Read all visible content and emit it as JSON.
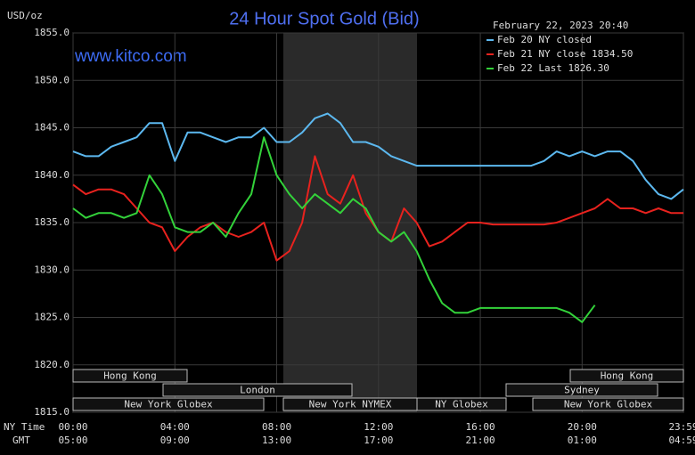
{
  "chart_data": {
    "type": "line",
    "title": "24 Hour Spot Gold (Bid)",
    "y_unit": "USD/oz",
    "website": "www.kitco.com",
    "timestamp": "February 22, 2023 20:40",
    "x_row_label": "NY Time",
    "x2_row_label": "GMT",
    "x": [
      0,
      0.5,
      1,
      1.5,
      2,
      2.5,
      3,
      3.5,
      4,
      4.5,
      5,
      5.5,
      6,
      6.5,
      7,
      7.5,
      8,
      8.5,
      9,
      9.5,
      10,
      10.5,
      11,
      11.5,
      12,
      12.5,
      13,
      13.5,
      14,
      14.5,
      15,
      15.5,
      16,
      16.5,
      17,
      17.5,
      18,
      18.5,
      19,
      19.5,
      20,
      20.5,
      21,
      21.5,
      22,
      22.5,
      23,
      23.5,
      23.98
    ],
    "xlim": [
      0,
      23.98
    ],
    "xticks": [
      {
        "value": 0,
        "label": "00:00"
      },
      {
        "value": 4,
        "label": "04:00"
      },
      {
        "value": 8,
        "label": "08:00"
      },
      {
        "value": 12,
        "label": "12:00"
      },
      {
        "value": 16,
        "label": "16:00"
      },
      {
        "value": 20,
        "label": "20:00"
      },
      {
        "value": 23.98,
        "label": "23:59"
      }
    ],
    "x2ticks": [
      {
        "value": 0,
        "label": "05:00"
      },
      {
        "value": 4,
        "label": "09:00"
      },
      {
        "value": 8,
        "label": "13:00"
      },
      {
        "value": 12,
        "label": "17:00"
      },
      {
        "value": 16,
        "label": "21:00"
      },
      {
        "value": 20,
        "label": "01:00"
      },
      {
        "value": 23.98,
        "label": "04:59"
      }
    ],
    "ylim": [
      1815,
      1855
    ],
    "yticks": [
      {
        "value": 1815,
        "label": "1815.0"
      },
      {
        "value": 1820,
        "label": "1820.0"
      },
      {
        "value": 1825,
        "label": "1825.0"
      },
      {
        "value": 1830,
        "label": "1830.0"
      },
      {
        "value": 1835,
        "label": "1835.0"
      },
      {
        "value": 1840,
        "label": "1840.0"
      },
      {
        "value": 1845,
        "label": "1845.0"
      },
      {
        "value": 1850,
        "label": "1850.0"
      },
      {
        "value": 1855,
        "label": "1855.0"
      }
    ],
    "grid": true,
    "legend": "top-right",
    "series": [
      {
        "name": "Feb 20 NY closed",
        "color": "#5cb8ef",
        "values": [
          1842.5,
          1842,
          1842,
          1843,
          1843.5,
          1844,
          1845.5,
          1845.5,
          1841.5,
          1844.5,
          1844.5,
          1844,
          1843.5,
          1844,
          1844,
          1845,
          1843.5,
          1843.5,
          1844.5,
          1846,
          1846.5,
          1845.5,
          1843.5,
          1843.5,
          1843,
          1842,
          1841.5,
          1841,
          1841,
          1841,
          1841,
          1841,
          1841,
          1841,
          1841,
          1841,
          1841,
          1841.5,
          1842.5,
          1842,
          1842.5,
          1842,
          1842.5,
          1842.5,
          1841.5,
          1839.5,
          1838,
          1837.5,
          1838.5
        ]
      },
      {
        "name": "Feb 21 NY close 1834.50",
        "color": "#e8221e",
        "values": [
          1839,
          1838,
          1838.5,
          1838.5,
          1838,
          1836.5,
          1835,
          1834.5,
          1832,
          1833.5,
          1834.5,
          1835,
          1834,
          1833.5,
          1834,
          1835,
          1831,
          1832,
          1835,
          1842,
          1838,
          1837,
          1840,
          1836,
          1834,
          1833,
          1836.5,
          1835,
          1832.5,
          1833,
          1834,
          1835,
          1835,
          1834.8,
          1834.8,
          1834.8,
          1834.8,
          1834.8,
          1835,
          1835.5,
          1836,
          1836.5,
          1837.5,
          1836.5,
          1836.5,
          1836,
          1836.5,
          1836,
          1836
        ]
      },
      {
        "name": "Feb 22 Last 1826.30",
        "color": "#33d23a",
        "values": [
          1836.5,
          1835.5,
          1836,
          1836,
          1835.5,
          1836,
          1840,
          1838,
          1834.5,
          1834,
          1834,
          1835,
          1833.5,
          1836,
          1838,
          1844,
          1840,
          1838,
          1836.5,
          1838,
          1837,
          1836,
          1837.5,
          1836.5,
          1834,
          1833,
          1834,
          1832,
          1829,
          1826.5,
          1825.5,
          1825.5,
          1826,
          1826,
          1826,
          1826,
          1826,
          1826,
          1826,
          1825.5,
          1824.5,
          1826.3,
          null,
          null,
          null,
          null,
          null,
          null,
          null
        ]
      }
    ],
    "sessions": [
      "Hong Kong",
      "London",
      "New York Globex",
      "New York NYMEX",
      "NY Globex",
      "Hong Kong",
      "Sydney",
      "New York Globex"
    ]
  }
}
